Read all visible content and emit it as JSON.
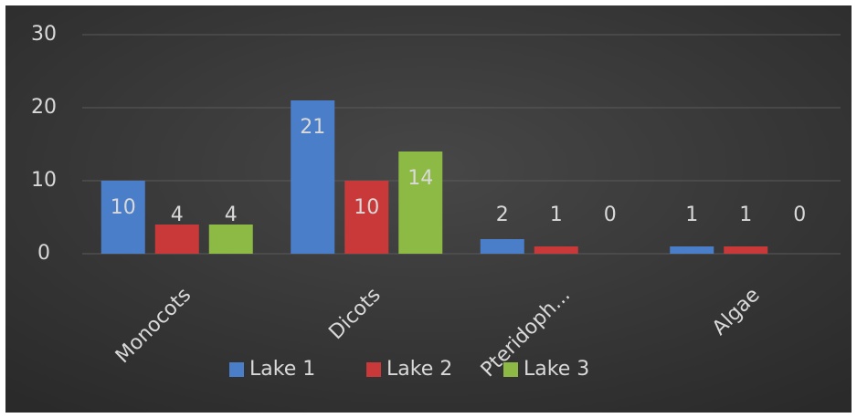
{
  "chart_data": {
    "type": "bar",
    "categories": [
      "Monocots",
      "Dicots",
      "Pteridoph...",
      "Algae"
    ],
    "series": [
      {
        "name": "Lake 1",
        "color": "#4a7ec9",
        "values": [
          10,
          21,
          2,
          1
        ]
      },
      {
        "name": "Lake 2",
        "color": "#c9393a",
        "values": [
          4,
          10,
          1,
          1
        ]
      },
      {
        "name": "Lake 3",
        "color": "#8dba44",
        "values": [
          4,
          14,
          0,
          0
        ]
      }
    ],
    "ylim": [
      0,
      30
    ],
    "yticks": [
      0,
      10,
      20,
      30
    ],
    "grid": true,
    "legend": "bottom"
  }
}
